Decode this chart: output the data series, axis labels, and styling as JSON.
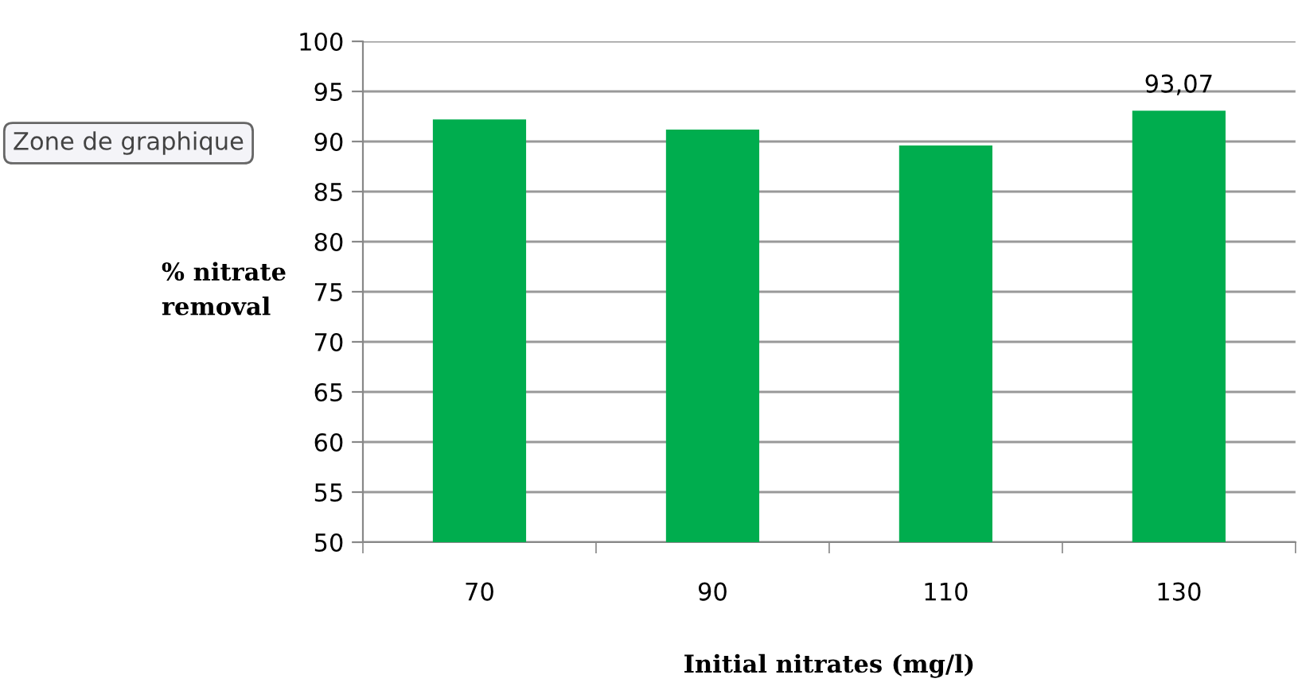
{
  "chart_data": {
    "type": "bar",
    "xlabel": "Initial nitrates (mg/l)",
    "ylabel": "% nitrate\nremoval",
    "categories": [
      "70",
      "90",
      "110",
      "130"
    ],
    "values": [
      92.2,
      91.2,
      89.6,
      93.07
    ],
    "value_labels": [
      null,
      null,
      null,
      "93,07"
    ],
    "color": "#00ad4e",
    "ylim": [
      50,
      100
    ],
    "yticks": [
      50,
      55,
      60,
      65,
      70,
      75,
      80,
      85,
      90,
      95,
      100
    ],
    "grid": "y",
    "annotations": [
      "Zone de graphique"
    ]
  }
}
